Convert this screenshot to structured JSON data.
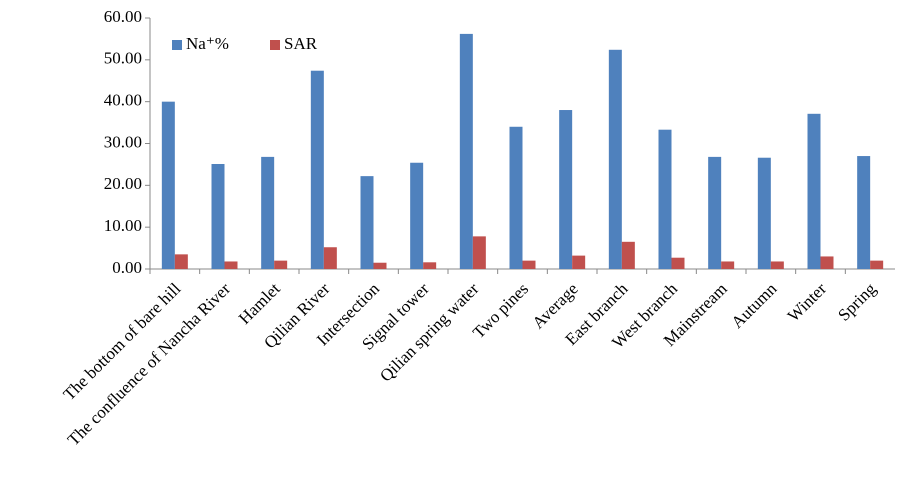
{
  "chart_data": {
    "type": "bar",
    "categories": [
      "The bottom of bare hill",
      "The confluence of Nancha River",
      "Hamlet",
      "Qilian River",
      "Intersection",
      "Signal tower",
      "Qilian spring water",
      "Two pines",
      "Average",
      "East branch",
      "West branch",
      "Mainstream",
      "Autumn",
      "Winter",
      "Spring"
    ],
    "series": [
      {
        "name": "Na⁺%",
        "color": "#4f81bd",
        "values": [
          40.0,
          25.1,
          26.8,
          47.4,
          22.2,
          25.4,
          56.2,
          34.0,
          38.0,
          52.4,
          33.3,
          26.8,
          26.6,
          37.1,
          27.0
        ]
      },
      {
        "name": "SAR",
        "color": "#c0504d",
        "values": [
          3.5,
          1.8,
          2.0,
          5.2,
          1.5,
          1.6,
          7.8,
          2.0,
          3.2,
          6.5,
          2.7,
          1.8,
          1.8,
          3.0,
          2.0
        ]
      }
    ],
    "ylim": [
      0,
      60
    ],
    "yticks": [
      {
        "value": 0,
        "label": "0.00"
      },
      {
        "value": 10,
        "label": "10.00"
      },
      {
        "value": 20,
        "label": "20.00"
      },
      {
        "value": 30,
        "label": "30.00"
      },
      {
        "value": 40,
        "label": "40.00"
      },
      {
        "value": 50,
        "label": "50.00"
      },
      {
        "value": 60,
        "label": "60.00"
      }
    ],
    "legend": "top-left"
  }
}
